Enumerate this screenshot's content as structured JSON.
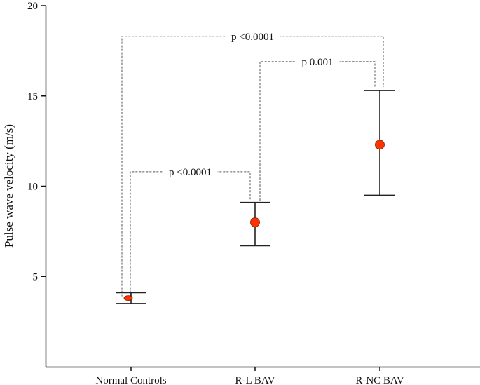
{
  "chart_data": {
    "type": "scatter",
    "title": "",
    "xlabel": "",
    "ylabel": "Pulse wave velocity (m/s)",
    "ylim": [
      0,
      20
    ],
    "yticks": [
      5,
      10,
      15,
      20
    ],
    "grid": false,
    "categories": [
      "Normal Controls",
      "R-L BAV",
      "R-NC BAV"
    ],
    "series": [
      {
        "mean": [
          3.8,
          8.0,
          12.3
        ],
        "lower": [
          3.5,
          6.7,
          9.5
        ],
        "upper": [
          4.1,
          9.1,
          15.3
        ],
        "color": "#ff3300"
      }
    ],
    "annotations": [
      {
        "label": "p <0.0001",
        "from": "Normal Controls",
        "to": "R-NC BAV",
        "level": 18.3
      },
      {
        "label": "p 0.001",
        "from": "R-L BAV",
        "to": "R-NC BAV",
        "level": 16.9
      },
      {
        "label": "p <0.0001",
        "from": "Normal Controls",
        "to": "R-L BAV",
        "level": 10.8
      }
    ]
  }
}
